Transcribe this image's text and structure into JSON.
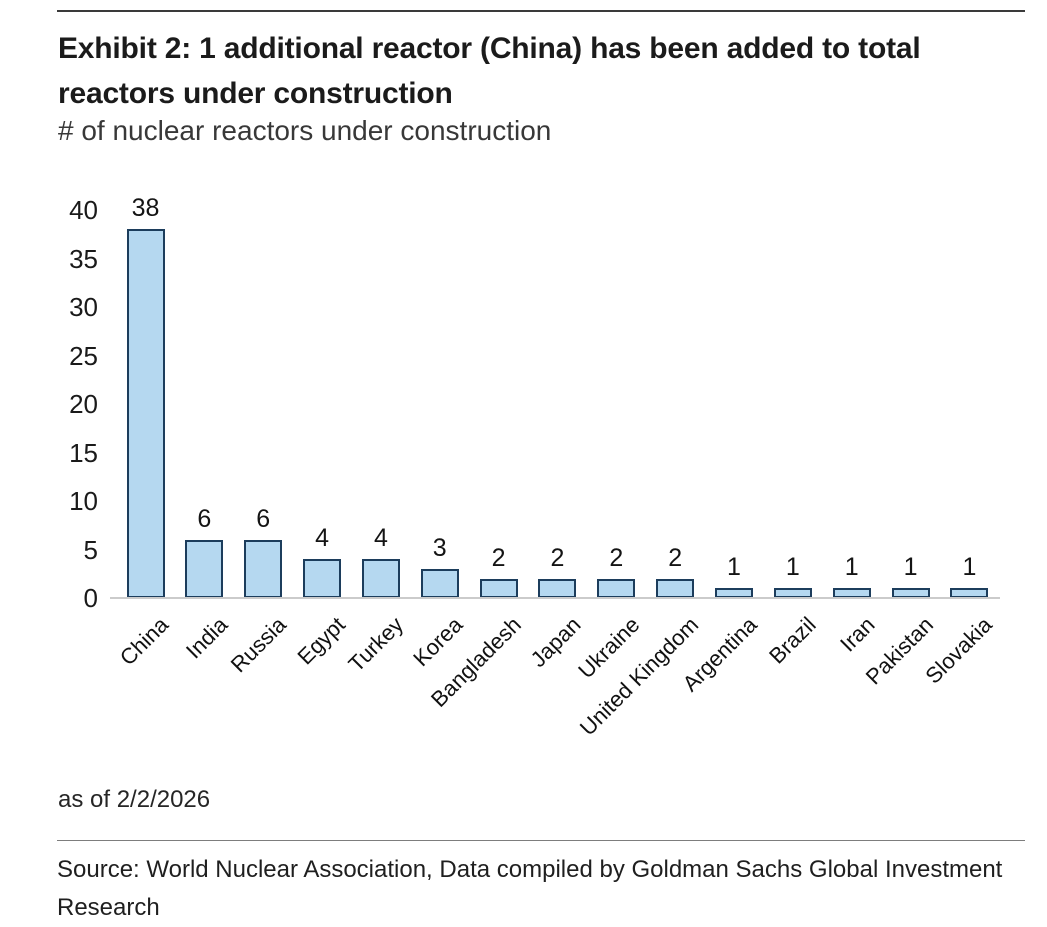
{
  "chart_data": {
    "type": "bar",
    "title": "Exhibit 2: 1 additional reactor (China) has been added to total reactors under construction",
    "subtitle": "# of nuclear reactors under construction",
    "categories": [
      "China",
      "India",
      "Russia",
      "Egypt",
      "Turkey",
      "Korea",
      "Bangladesh",
      "Japan",
      "Ukraine",
      "United Kingdom",
      "Argentina",
      "Brazil",
      "Iran",
      "Pakistan",
      "Slovakia"
    ],
    "values": [
      38,
      6,
      6,
      4,
      4,
      3,
      2,
      2,
      2,
      2,
      1,
      1,
      1,
      1,
      1
    ],
    "xlabel": "",
    "ylabel": "",
    "ylim": [
      0,
      40
    ],
    "yticks": [
      0,
      5,
      10,
      15,
      20,
      25,
      30,
      35,
      40
    ],
    "grid": false,
    "legend": "none",
    "value_labels_shown": true,
    "bar_fill": "#B5D8F0",
    "bar_border": "#1C3D5C",
    "baseline_color": "#CBCBCB"
  },
  "footer": {
    "as_of": "as of 2/2/2026",
    "source": "Source: World Nuclear Association, Data compiled by Goldman Sachs Global Investment Research"
  }
}
